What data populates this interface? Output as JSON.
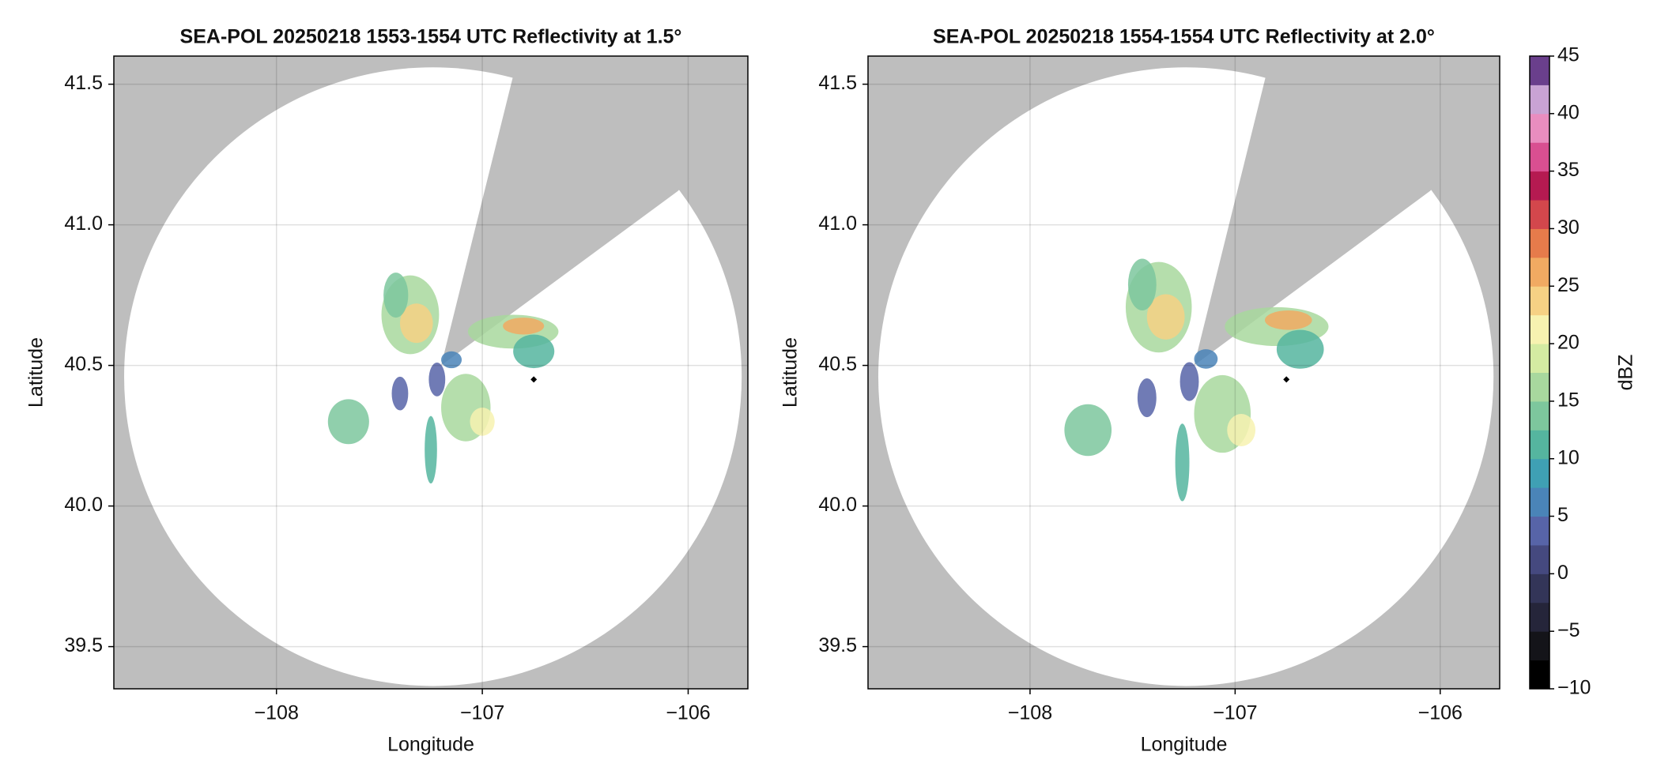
{
  "chart_data": [
    {
      "type": "radar_ppi",
      "title": "SEA-POL 20250218 1553-1554 UTC Reflectivity at 1.5°",
      "xlabel": "Longitude",
      "ylabel": "Latitude",
      "xlim": [
        -108.79,
        -105.71
      ],
      "ylim": [
        39.35,
        41.6
      ],
      "xticks": [
        {
          "value": -108,
          "label": "−108"
        },
        {
          "value": -107,
          "label": "−107"
        },
        {
          "value": -106,
          "label": "−106"
        }
      ],
      "yticks": [
        39.5,
        {
          "value": 40,
          "label": "40.0"
        },
        40.5,
        {
          "value": 41,
          "label": "41.0"
        },
        41.5
      ],
      "grid": true
    },
    {
      "type": "radar_ppi",
      "title": "SEA-POL 20250218 1554-1554 UTC Reflectivity at 2.0°",
      "xlabel": "Longitude",
      "ylabel": "Latitude",
      "xlim": [
        -108.79,
        -105.71
      ],
      "ylim": [
        39.35,
        41.6
      ],
      "xticks": [
        {
          "value": -108,
          "label": "−108"
        },
        {
          "value": -107,
          "label": "−107"
        },
        {
          "value": -106,
          "label": "−106"
        }
      ],
      "yticks": [
        39.5,
        {
          "value": 40,
          "label": "40.0"
        },
        40.5,
        {
          "value": 41,
          "label": "41.0"
        },
        41.5
      ],
      "grid": true,
      "colorbar": {
        "label": "dBZ",
        "lim": [
          -10,
          45
        ],
        "ticks": [
          {
            "value": -10,
            "label": "−10"
          },
          {
            "value": -5,
            "label": "−5"
          },
          0,
          5,
          10,
          15,
          20,
          25,
          30,
          35,
          40,
          45
        ],
        "colors": [
          "#000000",
          "#141419",
          "#25253a",
          "#333558",
          "#45497f",
          "#5764a8",
          "#4a84b8",
          "#3fa0b4",
          "#55b59f",
          "#7dc79d",
          "#a8d89e",
          "#d4eba2",
          "#f7f2b0",
          "#f6d184",
          "#f1aa62",
          "#e67b4b",
          "#d3474c",
          "#b51a51",
          "#d94f91",
          "#e98dbf",
          "#c9a3d4",
          "#6a3f8c"
        ]
      }
    }
  ]
}
